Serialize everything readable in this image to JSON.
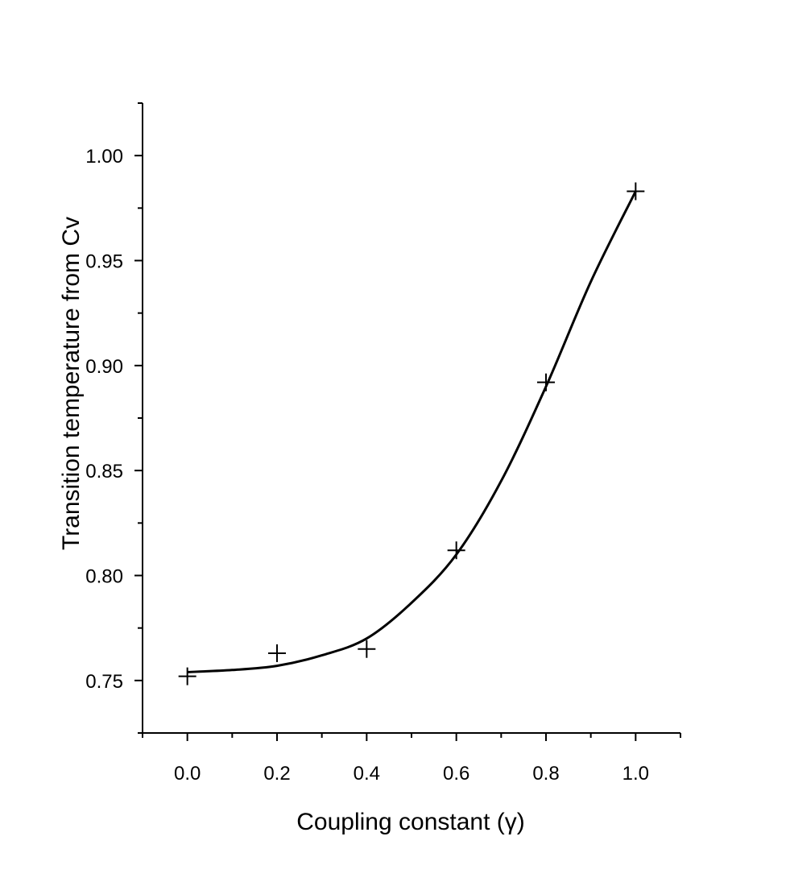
{
  "chart_data": {
    "type": "scatter",
    "title": "",
    "xlabel": "Coupling constant  (γ)",
    "ylabel": "Transition temperature from Cv",
    "xlim": [
      -0.1,
      1.1
    ],
    "ylim": [
      0.725,
      1.025
    ],
    "x_ticks": [
      0.0,
      0.2,
      0.4,
      0.6,
      0.8,
      1.0
    ],
    "x_tick_labels": [
      "0.0",
      "0.2",
      "0.4",
      "0.6",
      "0.8",
      "1.0"
    ],
    "y_ticks": [
      0.75,
      0.8,
      0.85,
      0.9,
      0.95,
      1.0
    ],
    "y_tick_labels": [
      "0.75",
      "0.80",
      "0.85",
      "0.90",
      "0.95",
      "1.00"
    ],
    "grid": false,
    "legend": "none",
    "series": [
      {
        "kind": "points",
        "marker": "cross",
        "x": [
          0.0,
          0.2,
          0.4,
          0.6,
          0.8,
          1.0
        ],
        "y": [
          0.752,
          0.763,
          0.765,
          0.812,
          0.892,
          0.983
        ]
      },
      {
        "kind": "fit-curve",
        "x": [
          0.0,
          0.1,
          0.2,
          0.3,
          0.4,
          0.5,
          0.6,
          0.7,
          0.8,
          0.9,
          1.0
        ],
        "y": [
          0.754,
          0.755,
          0.757,
          0.762,
          0.77,
          0.787,
          0.81,
          0.845,
          0.89,
          0.94,
          0.983
        ]
      }
    ],
    "colors": {
      "axis": "#000000",
      "marks": "#000000",
      "background": "#ffffff"
    }
  }
}
